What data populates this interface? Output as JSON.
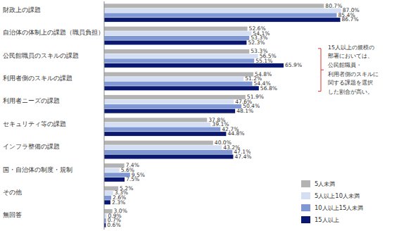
{
  "chart_data": {
    "type": "bar",
    "orientation": "horizontal",
    "data_labels": true,
    "tick_labels": "y",
    "grid": false,
    "legend": "lower right",
    "xlim": [
      0,
      100
    ],
    "categories": [
      "財政上の課題",
      "自治体の体制上の課題（職員負担）",
      "公民館職員のスキルの課題",
      "利用者側のスキルの課題",
      "利用者ニーズの課題",
      "セキュリティ等の課題",
      "インフラ整備の課題",
      "国・自治体の制度・規制",
      "その他",
      "無回答"
    ],
    "series": [
      {
        "name": "5人未満",
        "color": "#b3b3b3",
        "values": [
          80.7,
          52.6,
          53.3,
          54.8,
          51.9,
          37.8,
          40.0,
          7.4,
          5.2,
          3.0
        ],
        "value_labels": [
          "80.7%",
          "52.6%",
          "53.3%",
          "54.8%",
          "51.9%",
          "37.8%",
          "40.0%",
          "7.4%",
          "5.2%",
          "3.0%"
        ]
      },
      {
        "name": "5人以上10人未満",
        "color": "#d5dff3",
        "values": [
          87.0,
          54.1,
          56.5,
          51.2,
          47.6,
          39.1,
          43.2,
          5.6,
          3.3,
          0.9
        ],
        "value_labels": [
          "87.0%",
          "54.1%",
          "56.5%",
          "51.2%",
          "47.6%",
          "39.1%",
          "43.2%",
          "5.6%",
          "3.3%",
          "0.9%"
        ]
      },
      {
        "name": "10人以上15人未満",
        "color": "#7f98d3",
        "values": [
          85.4,
          53.3,
          55.1,
          54.4,
          50.4,
          42.7,
          47.1,
          9.5,
          2.6,
          0.7
        ],
        "value_labels": [
          "85.4%",
          "53.3%",
          "55.1%",
          "54.4%",
          "50.4%",
          "42.7%",
          "47.1%",
          "9.5%",
          "2.6%",
          "0.7%"
        ]
      },
      {
        "name": "15人以上",
        "color": "#0b1870",
        "values": [
          86.7,
          52.3,
          65.9,
          56.8,
          48.1,
          44.8,
          47.4,
          7.5,
          2.3,
          0.6
        ],
        "value_labels": [
          "86.7%",
          "52.3%",
          "65.9%",
          "56.8%",
          "48.1%",
          "44.8%",
          "47.4%",
          "7.5%",
          "2.3%",
          "0.6%"
        ]
      }
    ],
    "annotation": [
      "15人以上の規模の",
      "部署においては、",
      "公民館職員・",
      "利用者側のスキルに",
      "関する課題を選択",
      "した割合が高い。"
    ]
  }
}
